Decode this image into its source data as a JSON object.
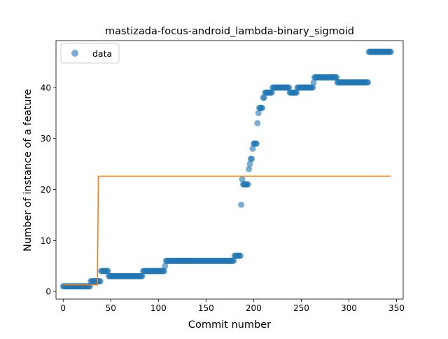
{
  "chart_data": {
    "type": "scatter",
    "title": "mastizada-focus-android_lambda-binary_sigmoid",
    "xlabel": "Commit number",
    "ylabel": "Number of instance of a feature",
    "xlim": [
      -7.5,
      357
    ],
    "ylim": [
      -1.5,
      49.2
    ],
    "xticks": [
      0,
      50,
      100,
      150,
      200,
      250,
      300,
      350
    ],
    "yticks": [
      0,
      10,
      20,
      30,
      40
    ],
    "grid": false,
    "legend": {
      "position": "top-left",
      "entries": [
        "data"
      ]
    },
    "colors": {
      "data": "#1f77b4",
      "fit": "#ff7f0e"
    },
    "data_steps": [
      {
        "from": 0,
        "to": 28,
        "y": 1
      },
      {
        "from": 29,
        "to": 39,
        "y": 2
      },
      {
        "from": 40,
        "to": 47,
        "y": 4
      },
      {
        "from": 48,
        "to": 83,
        "y": 3
      },
      {
        "from": 84,
        "to": 106,
        "y": 4
      },
      {
        "from": 107,
        "to": 107,
        "y": 5
      },
      {
        "from": 108,
        "to": 179,
        "y": 6
      },
      {
        "from": 180,
        "to": 186,
        "y": 7
      },
      {
        "from": 187,
        "to": 187,
        "y": 17
      },
      {
        "from": 188,
        "to": 188,
        "y": 22
      },
      {
        "from": 189,
        "to": 194,
        "y": 21
      },
      {
        "from": 195,
        "to": 195,
        "y": 24
      },
      {
        "from": 196,
        "to": 196,
        "y": 25
      },
      {
        "from": 197,
        "to": 198,
        "y": 26
      },
      {
        "from": 199,
        "to": 199,
        "y": 28
      },
      {
        "from": 200,
        "to": 203,
        "y": 29
      },
      {
        "from": 204,
        "to": 204,
        "y": 33
      },
      {
        "from": 205,
        "to": 205,
        "y": 35
      },
      {
        "from": 206,
        "to": 209,
        "y": 36
      },
      {
        "from": 210,
        "to": 211,
        "y": 38
      },
      {
        "from": 212,
        "to": 219,
        "y": 39
      },
      {
        "from": 220,
        "to": 237,
        "y": 40
      },
      {
        "from": 238,
        "to": 245,
        "y": 39
      },
      {
        "from": 246,
        "to": 262,
        "y": 40
      },
      {
        "from": 263,
        "to": 263,
        "y": 41
      },
      {
        "from": 264,
        "to": 287,
        "y": 42
      },
      {
        "from": 288,
        "to": 320,
        "y": 41
      },
      {
        "from": 321,
        "to": 344,
        "y": 47
      }
    ],
    "fit_line": {
      "x": [
        0,
        36,
        37,
        344
      ],
      "y": [
        1.3,
        1.3,
        22.6,
        22.6
      ]
    }
  }
}
